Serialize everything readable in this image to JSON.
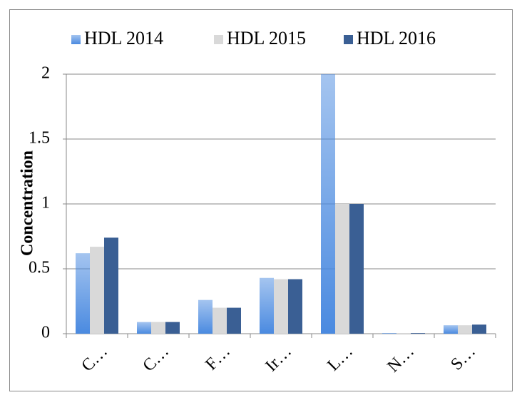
{
  "chart_data": {
    "type": "bar",
    "y_label": "Concentration",
    "categories": [
      "C…",
      "C…",
      "F…",
      "Ir…",
      "L…",
      "N…",
      "S…"
    ],
    "series": [
      {
        "name": "HDL 2014",
        "color": "#4a8ae0",
        "values": [
          0.62,
          0.09,
          0.26,
          0.43,
          2.0,
          0.005,
          0.065
        ]
      },
      {
        "name": "HDL 2015",
        "color": "#d9d9d9",
        "values": [
          0.67,
          0.09,
          0.2,
          0.42,
          1.0,
          0.005,
          0.065
        ]
      },
      {
        "name": "HDL 2016",
        "color": "#3a5f94",
        "values": [
          0.74,
          0.09,
          0.2,
          0.42,
          1.0,
          0.005,
          0.07
        ]
      }
    ],
    "ylim": [
      0,
      2
    ],
    "yticks": [
      0,
      0.5,
      1,
      1.5,
      2
    ],
    "grid": true,
    "legend": "top"
  }
}
